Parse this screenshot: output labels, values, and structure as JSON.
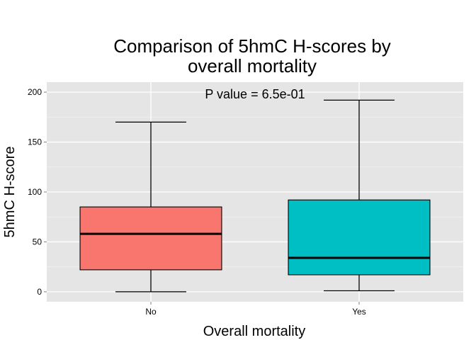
{
  "chart_data": {
    "type": "box",
    "title_lines": [
      "Comparison of 5hmC H-scores by",
      "overall mortality"
    ],
    "xlabel": "Overall mortality",
    "ylabel": "5hmC H-score",
    "categories": [
      "No",
      "Yes"
    ],
    "boxes": [
      {
        "category": "No",
        "min": 0,
        "q1": 22,
        "median": 58,
        "q3": 85,
        "max": 170,
        "color": "#F8766D"
      },
      {
        "category": "Yes",
        "min": 1,
        "q1": 17,
        "median": 34,
        "q3": 92,
        "max": 192,
        "color": "#00BFC4"
      }
    ],
    "ylim": [
      -10,
      210
    ],
    "yticks": [
      0,
      50,
      100,
      150,
      200
    ],
    "annotation": "P value = 6.5e-01",
    "annotation_y": 198,
    "panel_background": "#E5E5E5",
    "grid": true
  }
}
